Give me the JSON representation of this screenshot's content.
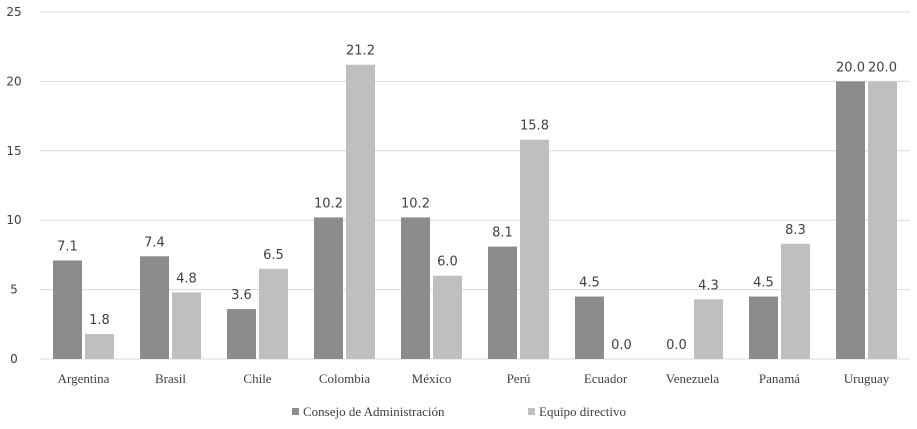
{
  "chart_data": {
    "type": "bar",
    "categories": [
      "Argentina",
      "Brasil",
      "Chile",
      "Colombia",
      "México",
      "Perú",
      "Ecuador",
      "Venezuela",
      "Panamá",
      "Uruguay"
    ],
    "series": [
      {
        "name": "Consejo de Administración",
        "values": [
          7.1,
          7.4,
          3.6,
          10.2,
          10.2,
          8.1,
          4.5,
          0.0,
          4.5,
          20.0
        ],
        "labels": [
          "7.1",
          "7.4",
          "3.6",
          "10.2",
          "10.2",
          "8.1",
          "4.5",
          "0.0",
          "4.5",
          "20.0"
        ],
        "color": "#8c8c8c"
      },
      {
        "name": "Equipo directivo",
        "values": [
          1.8,
          4.8,
          6.5,
          21.2,
          6.0,
          15.8,
          0.0,
          4.3,
          8.3,
          20.0
        ],
        "labels": [
          "1.8",
          "4.8",
          "6.5",
          "21.2",
          "6.0",
          "15.8",
          "0.0",
          "4.3",
          "8.3",
          "20.0"
        ],
        "color": "#bfbfbf"
      }
    ],
    "ylim": [
      0,
      25
    ],
    "yticks": [
      "0",
      "5",
      "10",
      "15",
      "20",
      "25"
    ],
    "ytick_values": [
      0,
      5,
      10,
      15,
      20,
      25
    ],
    "grid": true,
    "legend": "bottom-center"
  }
}
